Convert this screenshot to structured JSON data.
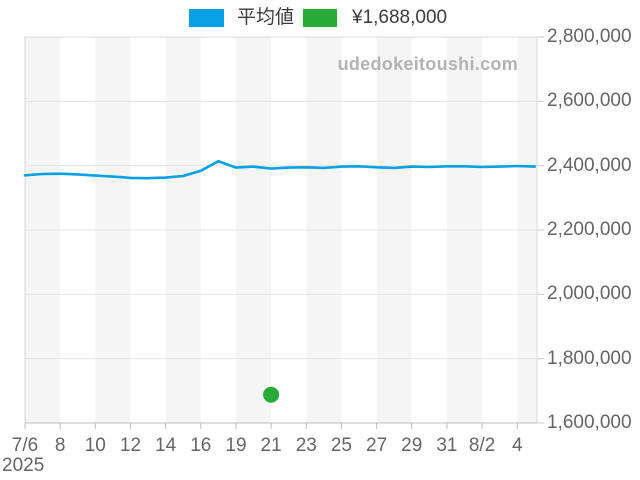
{
  "legend": {
    "items": [
      {
        "label": "平均値",
        "color": "#08a0e4"
      },
      {
        "label": "¥1,688,000",
        "color": "#27aa38"
      }
    ]
  },
  "watermark": {
    "text": "udedokeitoushi.com"
  },
  "x_axis": {
    "year_label": "2025"
  },
  "chart_data": {
    "type": "line",
    "title": "",
    "xlabel": "2025",
    "ylabel": "",
    "legend_position": "top",
    "grid": "horizontal",
    "background_stripes": true,
    "watermark": "udedokeitoushi.com",
    "categories": [
      "7/6",
      "7/7",
      "7/8",
      "7/9",
      "7/10",
      "7/11",
      "7/12",
      "7/13",
      "7/14",
      "7/15",
      "7/16",
      "7/17",
      "7/19",
      "7/20",
      "7/21",
      "7/22",
      "7/23",
      "7/24",
      "7/25",
      "7/26",
      "7/27",
      "7/28",
      "7/29",
      "7/30",
      "7/31",
      "8/1",
      "8/2",
      "8/3",
      "8/4",
      "8/5"
    ],
    "series": [
      {
        "name": "平均値",
        "type": "line",
        "color": "#08a0e4",
        "values": [
          2370000,
          2374000,
          2375000,
          2373000,
          2369000,
          2366000,
          2362000,
          2361000,
          2363000,
          2368000,
          2384000,
          2414000,
          2394000,
          2397000,
          2391000,
          2394000,
          2395000,
          2393000,
          2397000,
          2398000,
          2395000,
          2393000,
          2397000,
          2396000,
          2398000,
          2398000,
          2396000,
          2397000,
          2399000,
          2397000
        ]
      }
    ],
    "points": [
      {
        "name": "¥1,688,000",
        "type": "scatter",
        "color": "#27aa38",
        "category": "7/21",
        "value": 1688000
      }
    ],
    "x_tick_labels": [
      "7/6",
      "8",
      "10",
      "12",
      "14",
      "16",
      "19",
      "21",
      "23",
      "25",
      "27",
      "29",
      "31",
      "8/2",
      "4"
    ],
    "x_tick_indices": [
      0,
      2,
      4,
      6,
      8,
      10,
      12,
      14,
      16,
      18,
      20,
      22,
      24,
      26,
      28
    ],
    "ylim": [
      1600000,
      2800000
    ],
    "y_ticks": [
      2800000,
      2600000,
      2400000,
      2200000,
      2000000,
      1800000,
      1600000
    ],
    "y_tick_labels": [
      "2,800,000",
      "2,600,000",
      "2,400,000",
      "2,200,000",
      "2,000,000",
      "1,800,000",
      "1,600,000"
    ]
  }
}
